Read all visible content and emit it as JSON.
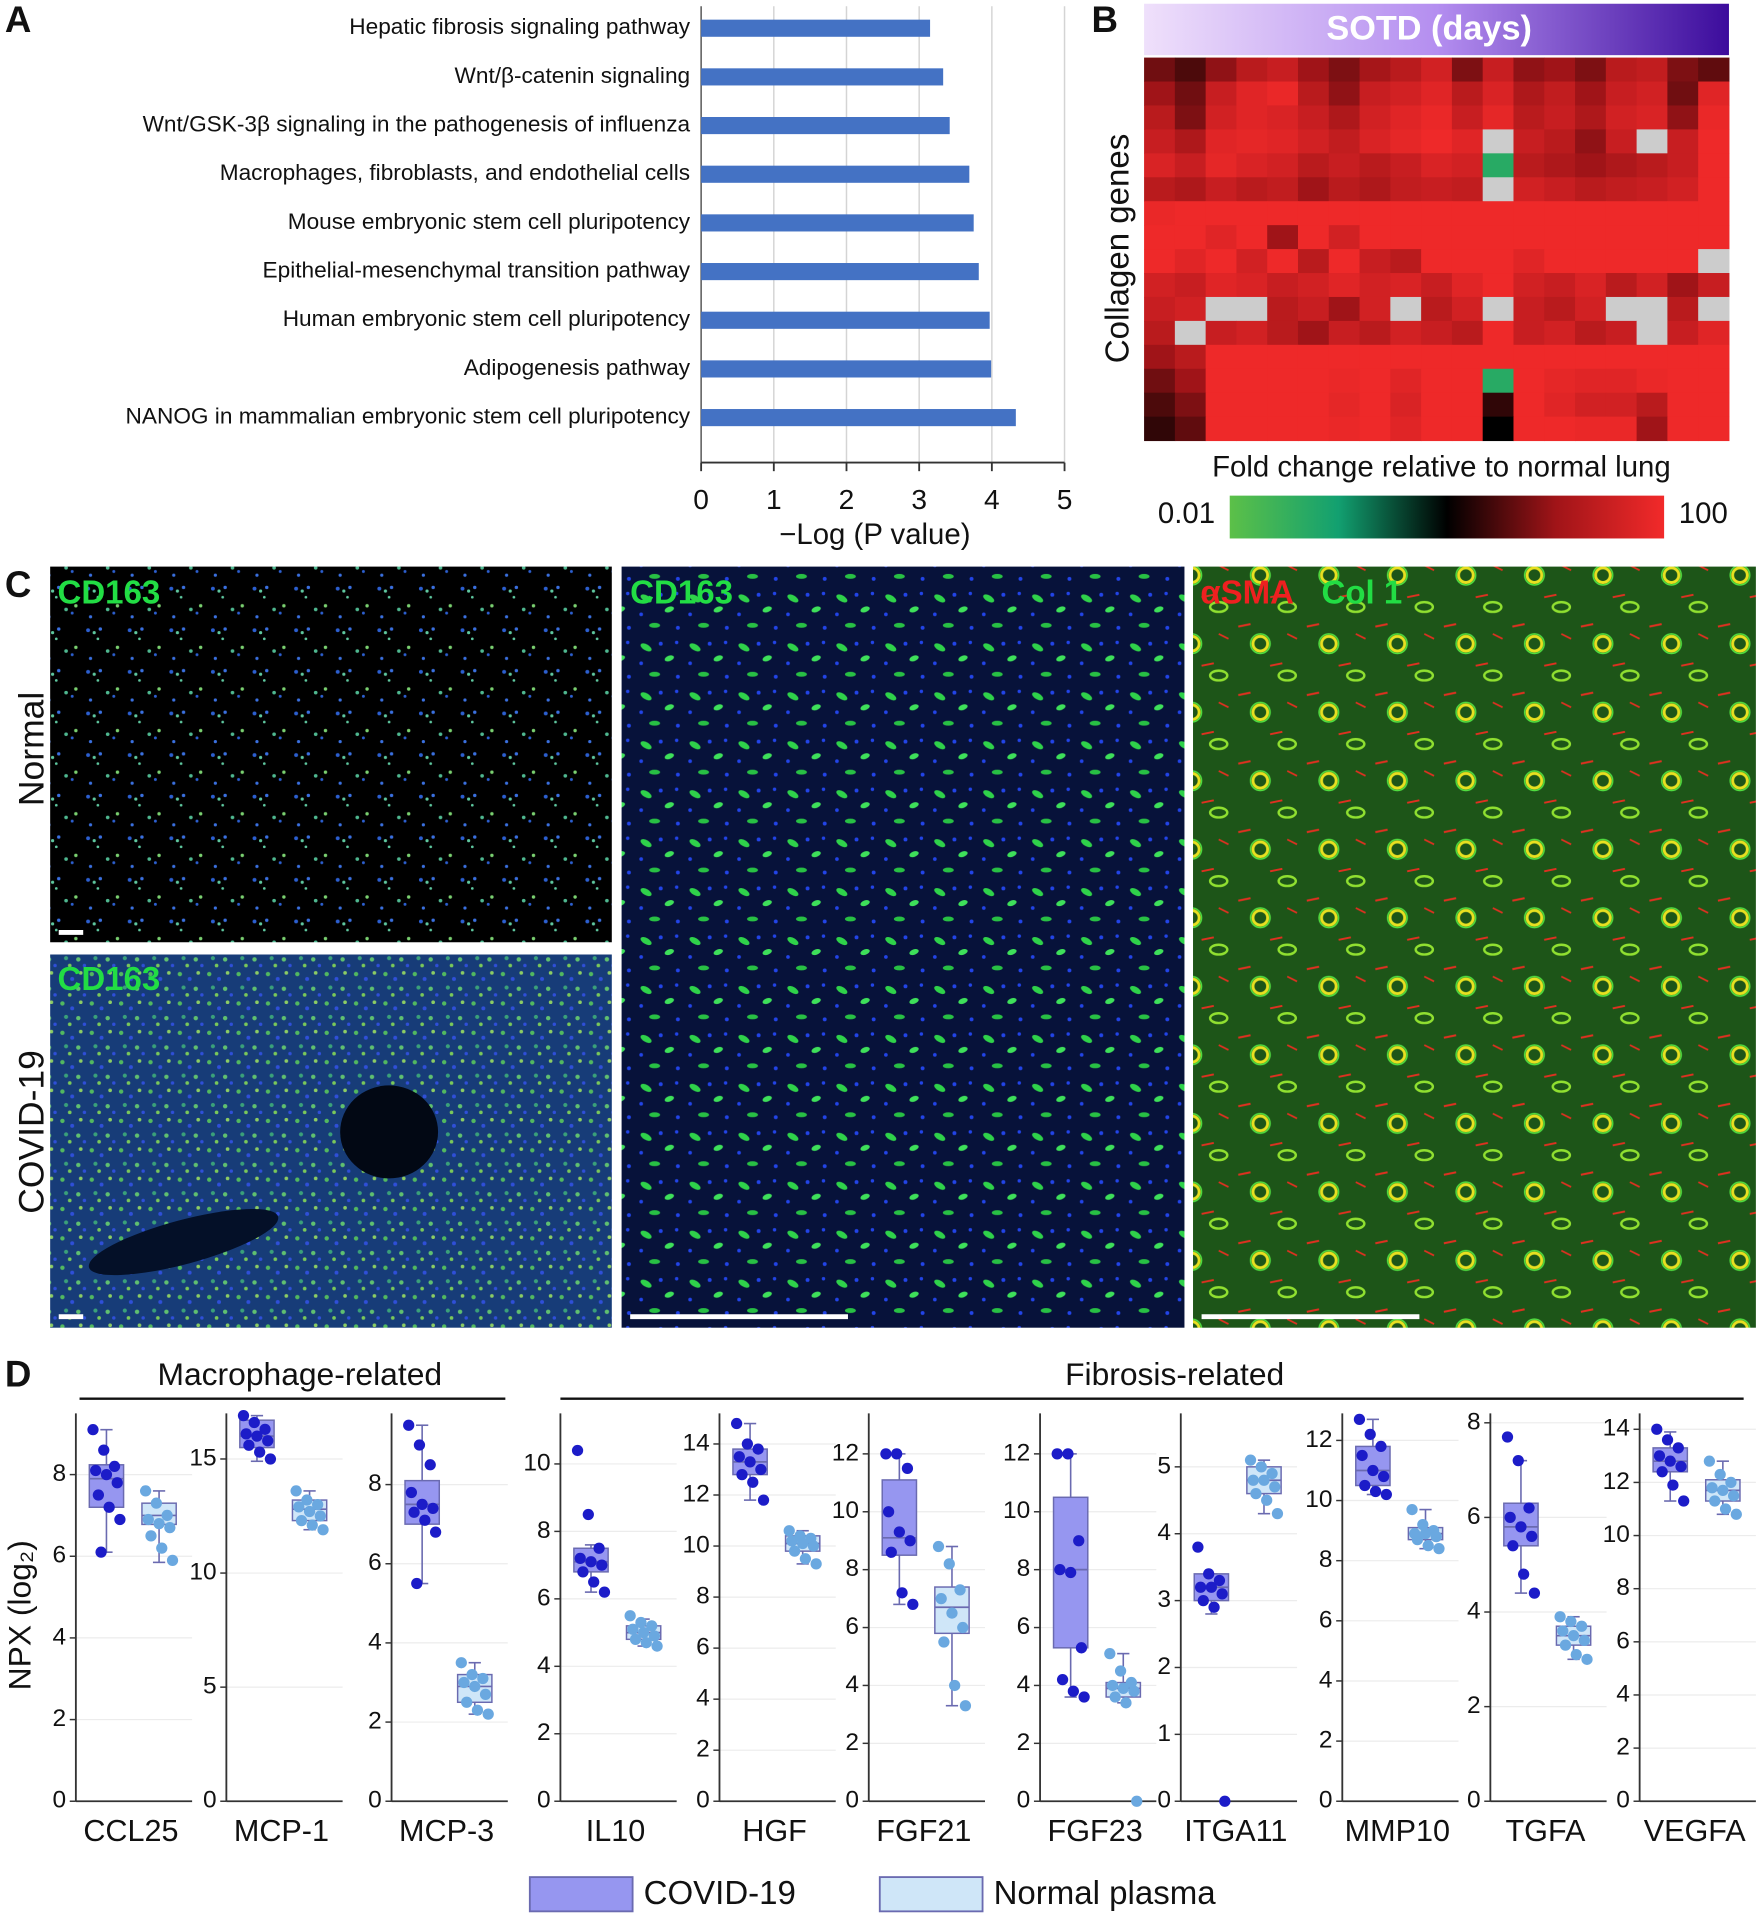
{
  "panel_labels": [
    "A",
    "B",
    "C",
    "D"
  ],
  "chart_data": [
    {
      "type": "bar",
      "orientation": "horizontal",
      "categories": [
        "Hepatic fibrosis signaling pathway",
        "Wnt/β-catenin signaling",
        "Wnt/GSK-3β signaling in the pathogenesis of influenza",
        "Macrophages, fibroblasts, and endothelial cells",
        "Mouse embryonic stem cell pluripotency",
        "Epithelial-mesenchymal transition pathway",
        "Human embryonic stem cell pluripotency",
        "Adipogenesis pathway",
        "NANOG in mammalian embryonic stem cell pluripotency"
      ],
      "values": [
        3.15,
        3.33,
        3.42,
        3.69,
        3.75,
        3.82,
        3.97,
        3.99,
        4.33
      ],
      "color": "#4472c4",
      "x_label": "−Log (P value)",
      "xlim": [
        0,
        5
      ],
      "xticks": [
        0,
        1,
        2,
        3,
        4,
        5
      ],
      "grid": true
    },
    {
      "type": "heatmap",
      "column_label": "SOTD (days)",
      "row_label": "Collagen genes",
      "colorbar": {
        "label": "Fold change relative to normal lung",
        "lim": [
          0.01,
          100
        ],
        "ticks": [
          0.01,
          100
        ],
        "log": true
      },
      "colormap": [
        "#5cc048",
        "#12a070",
        "#000000",
        "#a01418",
        "#f22a2a"
      ],
      "missing_color": "#cccccc",
      "values": [
        [
          5,
          3,
          8,
          20,
          30,
          10,
          6,
          12,
          20,
          40,
          6,
          30,
          8,
          10,
          6,
          20,
          25,
          6,
          4
        ],
        [
          10,
          5,
          30,
          60,
          80,
          20,
          8,
          30,
          40,
          60,
          20,
          50,
          15,
          25,
          10,
          30,
          40,
          5,
          60
        ],
        [
          20,
          6,
          40,
          60,
          50,
          30,
          15,
          40,
          60,
          80,
          30,
          70,
          20,
          30,
          15,
          40,
          50,
          8,
          80
        ],
        [
          30,
          15,
          60,
          70,
          60,
          40,
          25,
          50,
          70,
          90,
          60,
          null,
          30,
          20,
          8,
          30,
          null,
          30,
          90
        ],
        [
          50,
          30,
          70,
          50,
          40,
          20,
          30,
          20,
          30,
          50,
          40,
          0.05,
          20,
          15,
          10,
          15,
          20,
          30,
          90
        ],
        [
          20,
          15,
          30,
          20,
          25,
          10,
          20,
          15,
          25,
          30,
          25,
          null,
          40,
          30,
          20,
          25,
          30,
          40,
          90
        ],
        [
          80,
          90,
          90,
          90,
          90,
          90,
          90,
          90,
          90,
          90,
          90,
          90,
          90,
          90,
          90,
          90,
          90,
          90,
          90
        ],
        [
          90,
          90,
          60,
          90,
          10,
          90,
          40,
          90,
          90,
          90,
          90,
          90,
          90,
          90,
          90,
          90,
          90,
          90,
          90
        ],
        [
          90,
          60,
          90,
          40,
          90,
          20,
          90,
          30,
          20,
          90,
          90,
          90,
          60,
          90,
          90,
          90,
          90,
          90,
          null
        ],
        [
          40,
          30,
          60,
          50,
          30,
          40,
          60,
          40,
          50,
          30,
          60,
          90,
          40,
          30,
          50,
          20,
          40,
          10,
          30
        ],
        [
          30,
          40,
          null,
          null,
          20,
          30,
          10,
          40,
          null,
          20,
          40,
          null,
          30,
          20,
          40,
          null,
          null,
          20,
          null
        ],
        [
          20,
          null,
          30,
          40,
          20,
          10,
          30,
          20,
          40,
          30,
          20,
          90,
          30,
          40,
          20,
          30,
          null,
          30,
          60
        ],
        [
          10,
          20,
          90,
          90,
          90,
          90,
          90,
          90,
          90,
          90,
          90,
          90,
          90,
          90,
          90,
          90,
          90,
          90,
          90
        ],
        [
          5,
          10,
          90,
          90,
          90,
          90,
          80,
          90,
          60,
          90,
          90,
          0.05,
          90,
          70,
          60,
          60,
          80,
          90,
          90
        ],
        [
          3,
          6,
          90,
          90,
          90,
          90,
          70,
          90,
          50,
          90,
          90,
          2,
          90,
          60,
          40,
          40,
          20,
          90,
          90
        ],
        [
          2,
          4,
          90,
          90,
          90,
          90,
          80,
          90,
          60,
          90,
          90,
          1,
          90,
          90,
          80,
          80,
          10,
          90,
          90
        ]
      ]
    },
    {
      "type": "box",
      "y_label": "NPX (log₂)",
      "group_labels": [
        "Macrophage-related",
        "Fibrosis-related"
      ],
      "series": [
        {
          "name": "COVID-19",
          "color": "#1c1cc8",
          "box_color": "#9696f0"
        },
        {
          "name": "Normal plasma",
          "color": "#6aa8e0",
          "box_color": "#cfe6f8"
        }
      ],
      "panels": [
        {
          "category": "CCL25",
          "ylim": [
            0,
            9.5
          ],
          "yticks": [
            0,
            2,
            4,
            6,
            8
          ],
          "groups": [
            {
              "whisker_low": 6.1,
              "q1": 7.2,
              "median": 7.9,
              "q3": 8.24,
              "whisker_high": 9.1,
              "points": [
                9.1,
                8.6,
                8.2,
                8.1,
                8.0,
                7.8,
                7.5,
                7.2,
                6.9,
                6.1
              ]
            },
            {
              "whisker_low": 5.85,
              "q1": 6.78,
              "median": 7.0,
              "q3": 7.3,
              "whisker_high": 7.6,
              "points": [
                7.6,
                7.3,
                7.0,
                6.9,
                6.8,
                6.7,
                6.5,
                6.2,
                5.9
              ]
            }
          ]
        },
        {
          "category": "MCP-1",
          "ylim": [
            0,
            17
          ],
          "yticks": [
            0,
            5,
            10,
            15
          ],
          "groups": [
            {
              "whisker_low": 14.9,
              "q1": 15.5,
              "median": 16.0,
              "q3": 16.7,
              "whisker_high": 16.9,
              "points": [
                16.9,
                16.6,
                16.3,
                16.1,
                16.0,
                15.8,
                15.6,
                15.3,
                15.0
              ]
            },
            {
              "whisker_low": 11.9,
              "q1": 12.3,
              "median": 12.8,
              "q3": 13.2,
              "whisker_high": 13.6,
              "points": [
                13.6,
                13.2,
                13.0,
                12.9,
                12.7,
                12.5,
                12.3,
                12.1,
                11.9
              ]
            }
          ]
        },
        {
          "category": "MCP-3",
          "ylim": [
            0,
            9.8
          ],
          "yticks": [
            0,
            2,
            4,
            6,
            8
          ],
          "groups": [
            {
              "whisker_low": 5.5,
              "q1": 7.0,
              "median": 7.5,
              "q3": 8.1,
              "whisker_high": 9.5,
              "points": [
                9.5,
                9.0,
                8.5,
                7.8,
                7.5,
                7.4,
                7.3,
                7.1,
                6.8,
                5.5
              ]
            },
            {
              "whisker_low": 2.2,
              "q1": 2.5,
              "median": 2.9,
              "q3": 3.2,
              "whisker_high": 3.5,
              "points": [
                3.5,
                3.2,
                3.1,
                3.0,
                2.9,
                2.7,
                2.5,
                2.3,
                2.2
              ]
            }
          ]
        },
        {
          "category": "IL10",
          "ylim": [
            0,
            11.5
          ],
          "yticks": [
            0,
            2,
            4,
            6,
            8,
            10
          ],
          "groups": [
            {
              "whisker_low": 6.2,
              "q1": 6.8,
              "median": 7.1,
              "q3": 7.5,
              "whisker_high": 7.6,
              "points": [
                10.4,
                8.5,
                7.5,
                7.2,
                7.1,
                7.0,
                6.8,
                6.5,
                6.2
              ]
            },
            {
              "whisker_low": 4.6,
              "q1": 4.8,
              "median": 5.0,
              "q3": 5.2,
              "whisker_high": 5.4,
              "points": [
                5.5,
                5.3,
                5.2,
                5.1,
                5.0,
                4.9,
                4.8,
                4.7,
                4.6
              ]
            }
          ]
        },
        {
          "category": "HGF",
          "ylim": [
            0,
            15.2
          ],
          "yticks": [
            0,
            2,
            4,
            6,
            8,
            10,
            12,
            14
          ],
          "groups": [
            {
              "whisker_low": 11.8,
              "q1": 12.8,
              "median": 13.3,
              "q3": 13.8,
              "whisker_high": 14.8,
              "points": [
                14.8,
                14.0,
                13.8,
                13.5,
                13.3,
                13.0,
                12.8,
                12.5,
                11.8
              ]
            },
            {
              "whisker_low": 9.3,
              "q1": 9.8,
              "median": 10.1,
              "q3": 10.4,
              "whisker_high": 10.6,
              "points": [
                10.6,
                10.4,
                10.3,
                10.2,
                10.1,
                10.0,
                9.8,
                9.5,
                9.3
              ]
            }
          ]
        },
        {
          "category": "FGF21",
          "ylim": [
            0,
            13.4
          ],
          "yticks": [
            0,
            2,
            4,
            6,
            8,
            10,
            12
          ],
          "groups": [
            {
              "whisker_low": 6.8,
              "q1": 8.5,
              "median": 9.1,
              "q3": 11.1,
              "whisker_high": 12.0,
              "points": [
                12.0,
                12.0,
                11.5,
                10.0,
                9.3,
                9.0,
                8.6,
                7.2,
                6.8
              ]
            },
            {
              "whisker_low": 3.3,
              "q1": 5.8,
              "median": 6.7,
              "q3": 7.4,
              "whisker_high": 8.8,
              "points": [
                8.8,
                8.2,
                7.3,
                7.0,
                6.5,
                6.0,
                5.5,
                4.0,
                3.3
              ]
            }
          ]
        },
        {
          "category": "FGF23",
          "ylim": [
            0,
            13.4
          ],
          "yticks": [
            0,
            2,
            4,
            6,
            8,
            10,
            12
          ],
          "groups": [
            {
              "whisker_low": 3.6,
              "q1": 5.3,
              "median": 8.0,
              "q3": 10.5,
              "whisker_high": 12.0,
              "points": [
                12.0,
                12.0,
                9.0,
                8.0,
                7.9,
                5.3,
                4.2,
                3.8,
                3.6
              ]
            },
            {
              "whisker_low": 3.4,
              "q1": 3.6,
              "median": 3.9,
              "q3": 4.1,
              "whisker_high": 5.1,
              "points": [
                5.1,
                4.5,
                4.1,
                4.0,
                3.9,
                3.8,
                3.6,
                3.4,
                0
              ]
            }
          ]
        },
        {
          "category": "ITGA11",
          "ylim": [
            0,
            5.8
          ],
          "yticks": [
            0,
            1,
            2,
            3,
            4,
            5
          ],
          "groups": [
            {
              "whisker_low": 2.8,
              "q1": 3.0,
              "median": 3.2,
              "q3": 3.4,
              "whisker_high": 3.4,
              "points": [
                3.8,
                3.4,
                3.3,
                3.2,
                3.2,
                3.1,
                3.0,
                2.9,
                0
              ]
            },
            {
              "whisker_low": 4.3,
              "q1": 4.6,
              "median": 4.8,
              "q3": 5.0,
              "whisker_high": 5.1,
              "points": [
                5.1,
                5.0,
                4.9,
                4.8,
                4.8,
                4.7,
                4.6,
                4.5,
                4.3
              ]
            }
          ]
        },
        {
          "category": "MMP10",
          "ylim": [
            0,
            12.9
          ],
          "yticks": [
            0,
            2,
            4,
            6,
            8,
            10,
            12
          ],
          "groups": [
            {
              "whisker_low": 10.2,
              "q1": 10.5,
              "median": 11.0,
              "q3": 11.8,
              "whisker_high": 12.7,
              "points": [
                12.7,
                12.2,
                11.8,
                11.5,
                11.0,
                10.8,
                10.5,
                10.3,
                10.2
              ]
            },
            {
              "whisker_low": 8.4,
              "q1": 8.7,
              "median": 8.9,
              "q3": 9.1,
              "whisker_high": 9.7,
              "points": [
                9.7,
                9.2,
                9.0,
                8.9,
                8.9,
                8.8,
                8.7,
                8.5,
                8.4
              ]
            }
          ]
        },
        {
          "category": "TGFA",
          "ylim": [
            0,
            8.2
          ],
          "yticks": [
            0,
            2,
            4,
            6,
            8
          ],
          "groups": [
            {
              "whisker_low": 4.4,
              "q1": 5.4,
              "median": 5.8,
              "q3": 6.3,
              "whisker_high": 7.2,
              "points": [
                7.7,
                7.2,
                6.2,
                6.0,
                5.8,
                5.6,
                5.4,
                4.8,
                4.4
              ]
            },
            {
              "whisker_low": 3.0,
              "q1": 3.3,
              "median": 3.5,
              "q3": 3.7,
              "whisker_high": 3.9,
              "points": [
                3.9,
                3.8,
                3.7,
                3.6,
                3.5,
                3.4,
                3.3,
                3.1,
                3.0
              ]
            }
          ]
        },
        {
          "category": "VEGFA",
          "ylim": [
            0,
            14.6
          ],
          "yticks": [
            0,
            2,
            4,
            6,
            8,
            10,
            12,
            14
          ],
          "groups": [
            {
              "whisker_low": 11.3,
              "q1": 12.4,
              "median": 12.8,
              "q3": 13.3,
              "whisker_high": 13.9,
              "points": [
                14.0,
                13.6,
                13.3,
                13.0,
                12.8,
                12.6,
                12.4,
                11.9,
                11.3
              ]
            },
            {
              "whisker_low": 10.8,
              "q1": 11.3,
              "median": 11.7,
              "q3": 12.1,
              "whisker_high": 12.8,
              "points": [
                12.8,
                12.3,
                12.0,
                11.8,
                11.7,
                11.5,
                11.3,
                11.0,
                10.8
              ]
            }
          ]
        }
      ]
    }
  ],
  "panel_c": {
    "row_labels": [
      "Normal",
      "COVID-19"
    ],
    "stains": [
      [
        "CD163"
      ],
      [
        "CD163"
      ],
      [
        "CD163"
      ],
      [
        "αSMA",
        "Col 1"
      ]
    ]
  }
}
